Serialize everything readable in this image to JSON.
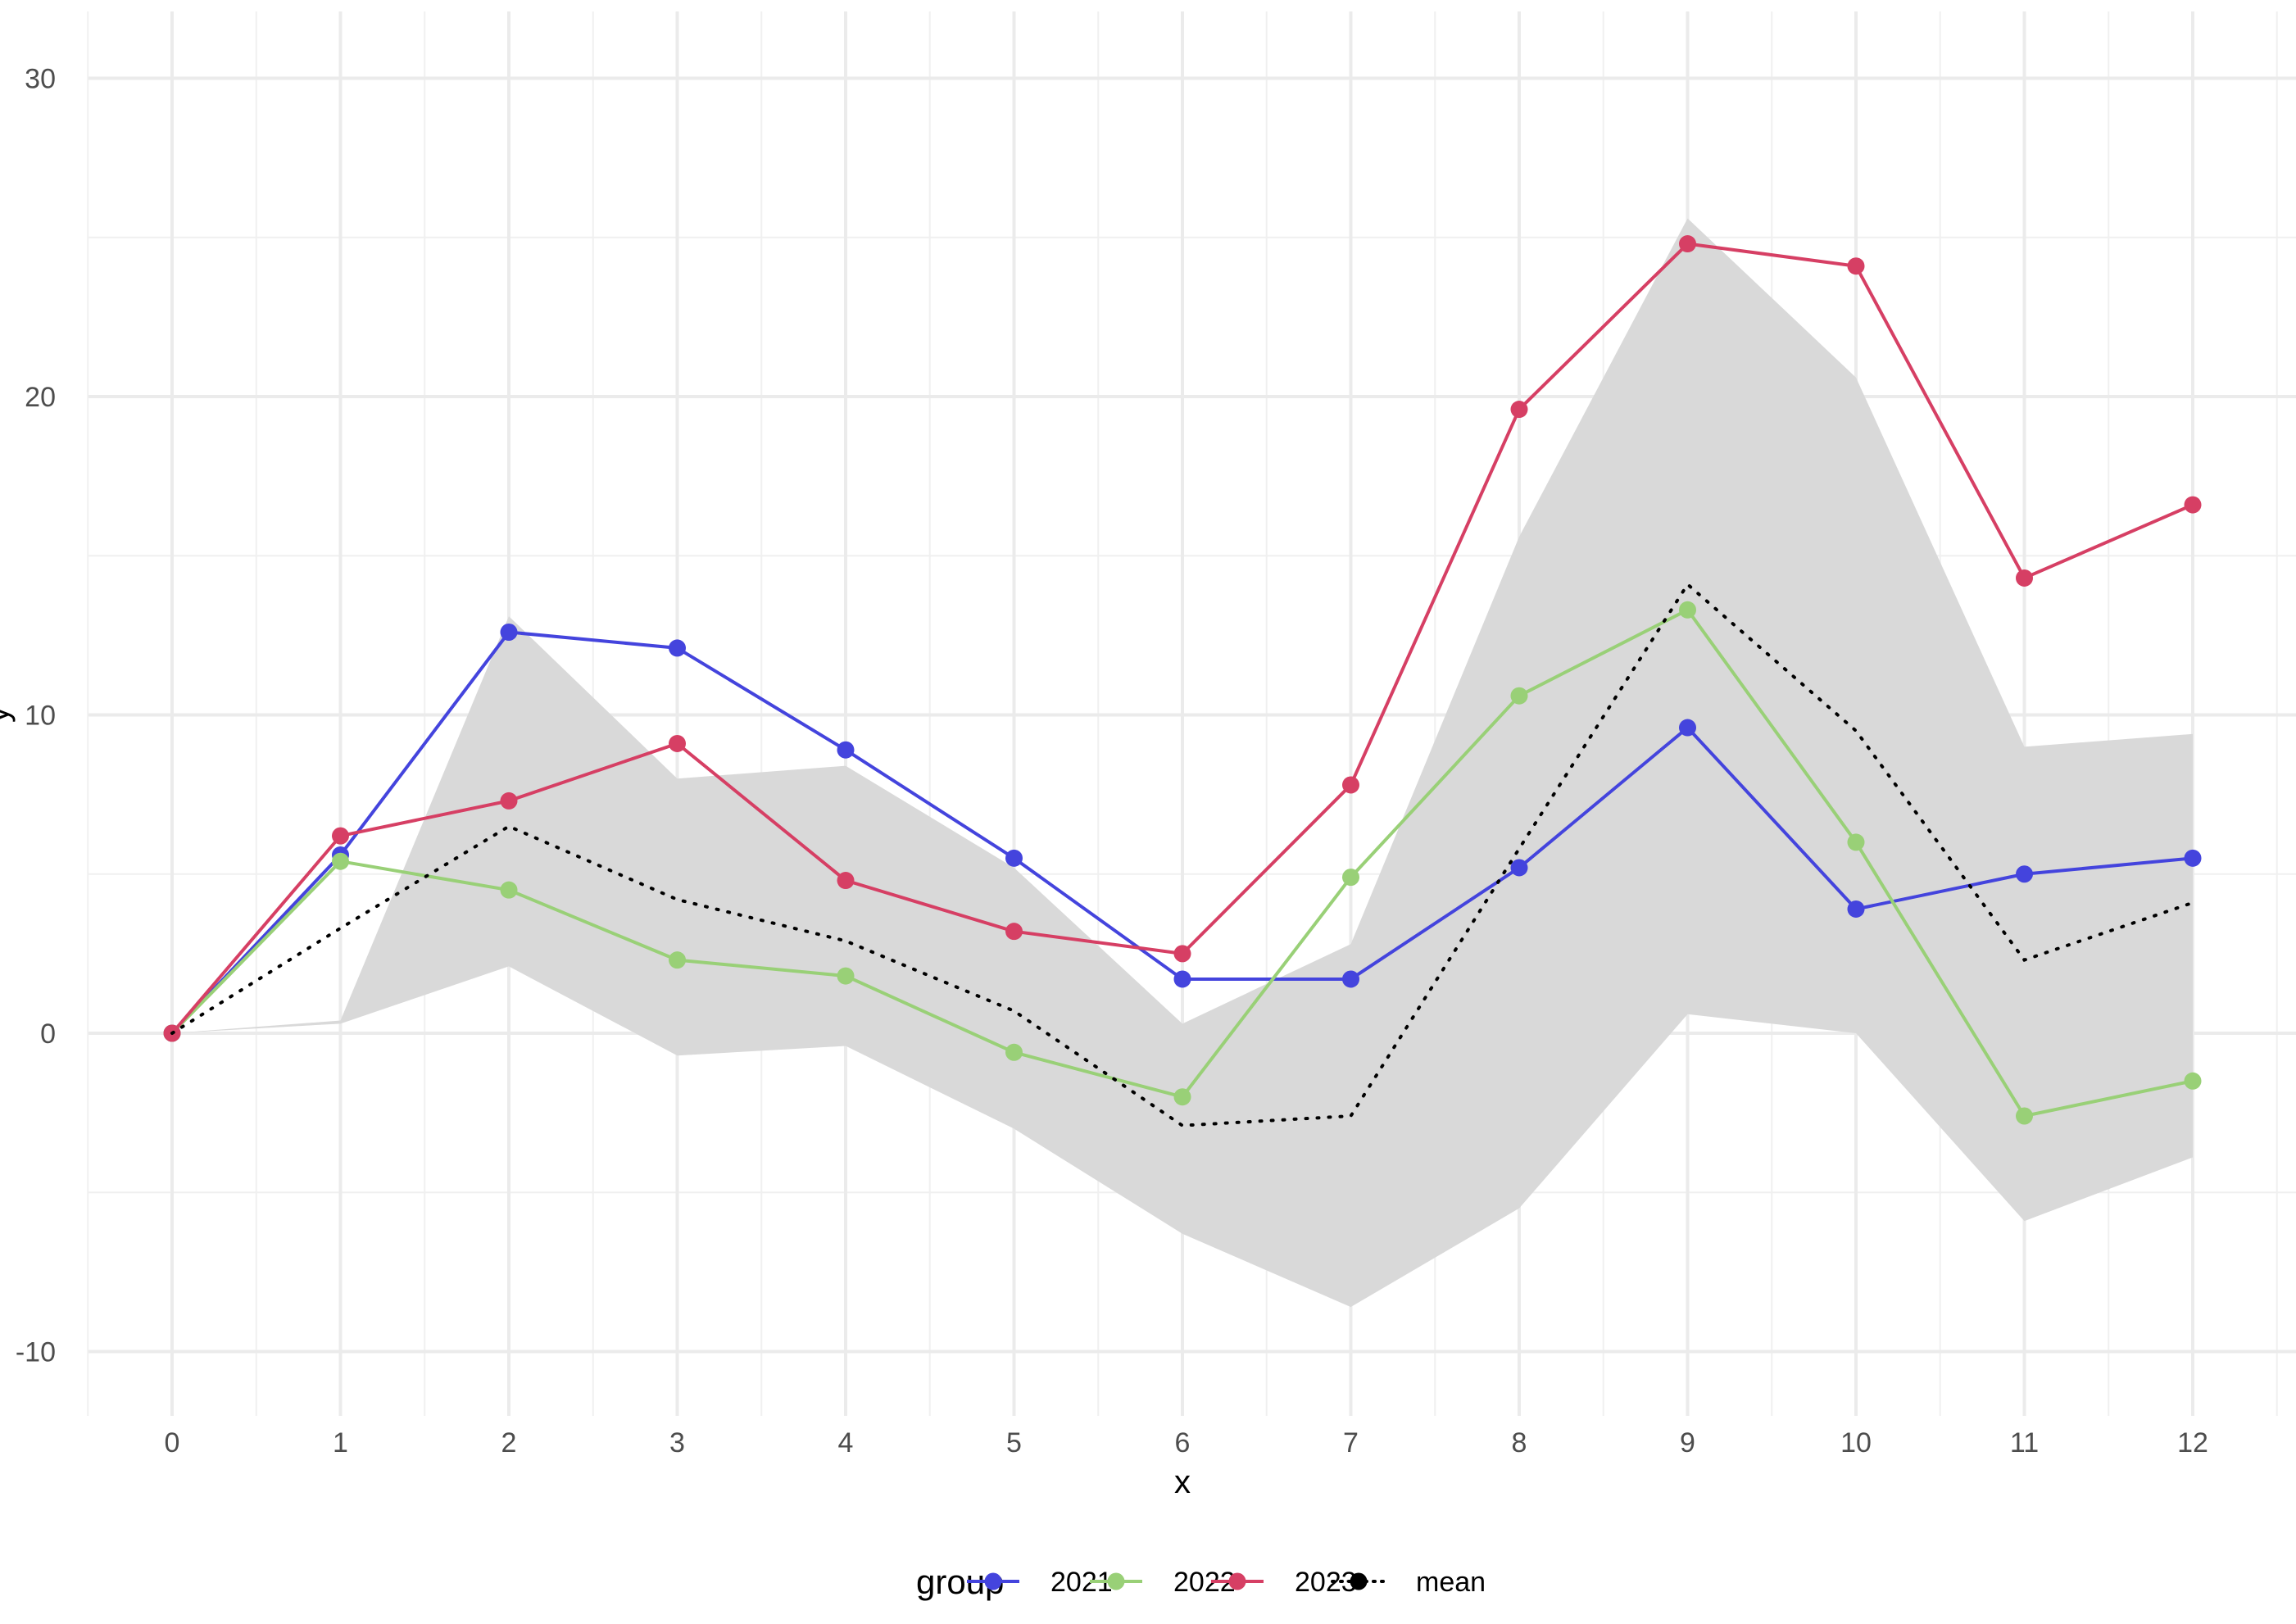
{
  "chart_data": {
    "type": "line",
    "title": "",
    "xlabel": "x",
    "ylabel": "y",
    "x": [
      0,
      1,
      2,
      3,
      4,
      5,
      6,
      7,
      8,
      9,
      10,
      11,
      12
    ],
    "xticks": [
      "0",
      "1",
      "2",
      "3",
      "4",
      "5",
      "6",
      "7",
      "8",
      "9",
      "10",
      "11",
      "12"
    ],
    "xlim": [
      -0.5,
      12.5
    ],
    "yticks": [
      "-10",
      "0",
      "10",
      "20",
      "30"
    ],
    "ylim": [
      -12,
      32
    ],
    "grid": true,
    "legend": {
      "title": "group",
      "position": "bottom"
    },
    "series": [
      {
        "name": "2021",
        "color": "#4444dd",
        "values": [
          0,
          5.6,
          12.6,
          12.1,
          8.9,
          5.5,
          1.7,
          1.7,
          5.2,
          9.6,
          3.9,
          5.0,
          5.5
        ]
      },
      {
        "name": "2022",
        "color": "#99d077",
        "values": [
          0,
          5.4,
          4.5,
          2.3,
          1.8,
          -0.6,
          -2.0,
          4.9,
          10.6,
          13.3,
          6.0,
          -2.6,
          -1.5
        ]
      },
      {
        "name": "2023",
        "color": "#d63f64",
        "values": [
          0,
          6.2,
          7.3,
          9.1,
          4.8,
          3.2,
          2.5,
          7.8,
          19.6,
          24.8,
          24.1,
          14.3,
          16.6
        ]
      }
    ],
    "mean": {
      "name": "mean",
      "color": "#000000",
      "values": [
        0,
        3.3,
        6.5,
        4.2,
        2.9,
        0.7,
        -2.9,
        -2.6,
        5.8,
        14.1,
        9.5,
        2.3,
        4.1
      ]
    },
    "band": {
      "fill": "#d9d9d9",
      "lower": [
        0,
        0.3,
        2.1,
        -0.7,
        -0.4,
        -3.0,
        -6.3,
        -8.6,
        -5.5,
        0.6,
        0.0,
        -5.9,
        -3.9
      ],
      "upper": [
        0,
        0.4,
        13.1,
        8.0,
        8.4,
        5.2,
        0.3,
        2.8,
        15.6,
        25.6,
        20.6,
        9.0,
        9.4
      ]
    }
  }
}
